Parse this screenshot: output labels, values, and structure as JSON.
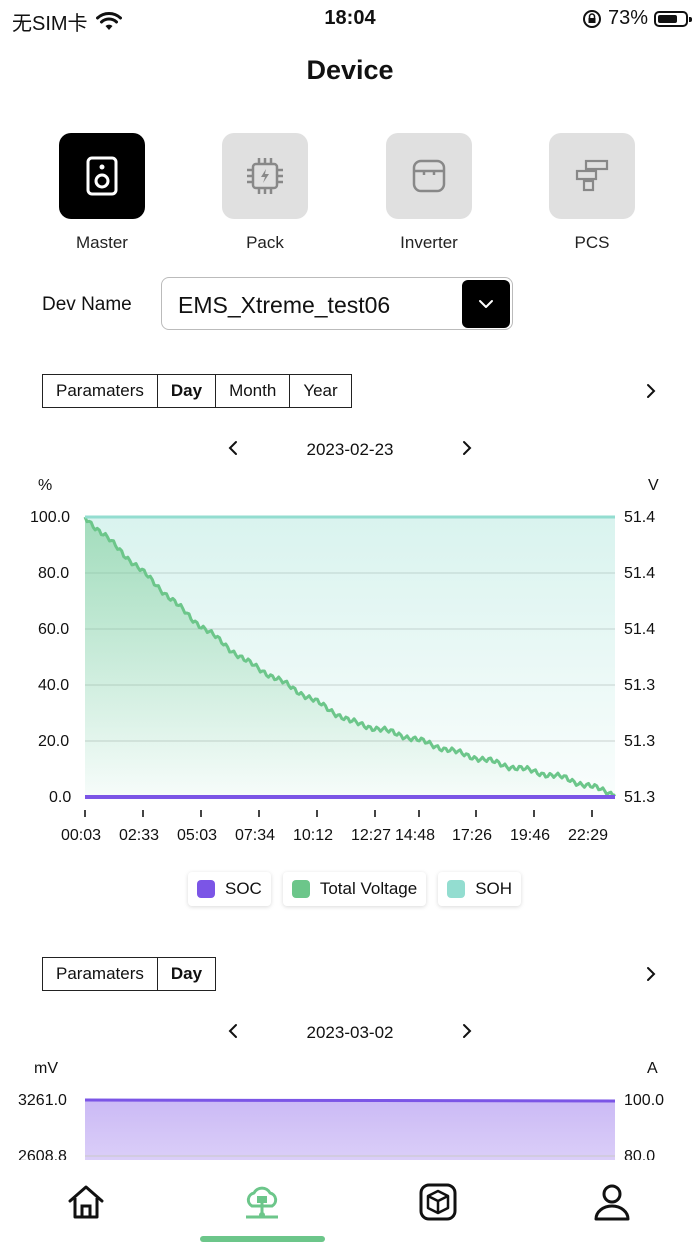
{
  "status_bar": {
    "carrier": "无SIM卡",
    "time": "18:04",
    "battery": "73%",
    "battery_level": 0.73
  },
  "header": {
    "title": "Device"
  },
  "device_types": [
    {
      "label": "Master",
      "icon": "speaker-icon",
      "active": true
    },
    {
      "label": "Pack",
      "icon": "chip-icon",
      "active": false
    },
    {
      "label": "Inverter",
      "icon": "inverter-icon",
      "active": false
    },
    {
      "label": "PCS",
      "icon": "pcs-icon",
      "active": false
    }
  ],
  "dev_name": {
    "label": "Dev Name",
    "value": "EMS_Xtreme_test06"
  },
  "chart1": {
    "tabs": [
      {
        "label": "Paramaters"
      },
      {
        "label": "Day",
        "active": true
      },
      {
        "label": "Month"
      },
      {
        "label": "Year"
      }
    ],
    "date": "2023-02-23",
    "left_unit": "%",
    "right_unit": "V",
    "left_ticks": [
      "100.0",
      "80.0",
      "60.0",
      "40.0",
      "20.0",
      "0.0"
    ],
    "right_ticks": [
      "51.4",
      "51.4",
      "51.4",
      "51.3",
      "51.3",
      "51.3"
    ],
    "x_ticks": [
      "00:03",
      "02:33",
      "05:03",
      "07:34",
      "10:12",
      "12:27",
      "14:48",
      "17:26",
      "19:46",
      "22:29"
    ],
    "legend": [
      {
        "label": "SOC",
        "color": "#7b55e6"
      },
      {
        "label": "Total Voltage",
        "color": "#6cc68a"
      },
      {
        "label": "SOH",
        "color": "#93ddd0"
      }
    ]
  },
  "chart_data": {
    "type": "line",
    "x": [
      "00:03",
      "02:33",
      "05:03",
      "07:34",
      "10:12",
      "12:27",
      "14:48",
      "17:26",
      "19:46",
      "22:29",
      "23:59"
    ],
    "series": [
      {
        "name": "SOC",
        "axis": "left",
        "values": [
          0,
          0,
          0,
          0,
          0,
          0,
          0,
          0,
          0,
          0,
          0
        ]
      },
      {
        "name": "Total Voltage",
        "axis": "right",
        "values": [
          100,
          82,
          64,
          49,
          38,
          27,
          22,
          16,
          11,
          7,
          1
        ]
      },
      {
        "name": "SOH",
        "axis": "left",
        "values": [
          100,
          100,
          100,
          100,
          100,
          100,
          100,
          100,
          100,
          100,
          100
        ]
      }
    ],
    "ylim": [
      0,
      100
    ],
    "grid": true,
    "legend": "bottom"
  },
  "chart2": {
    "tabs": [
      {
        "label": "Paramaters"
      },
      {
        "label": "Day",
        "active": true
      }
    ],
    "date": "2023-03-02",
    "left_unit": "mV",
    "right_unit": "A",
    "left_ticks": [
      "3261.0",
      "2608.8"
    ],
    "right_ticks": [
      "100.0",
      "80.0"
    ]
  },
  "bottom_nav": [
    {
      "label": "home",
      "icon": "home-icon"
    },
    {
      "label": "device",
      "icon": "device-tree-icon",
      "active": true
    },
    {
      "label": "product",
      "icon": "cube-icon"
    },
    {
      "label": "profile",
      "icon": "person-icon"
    }
  ]
}
